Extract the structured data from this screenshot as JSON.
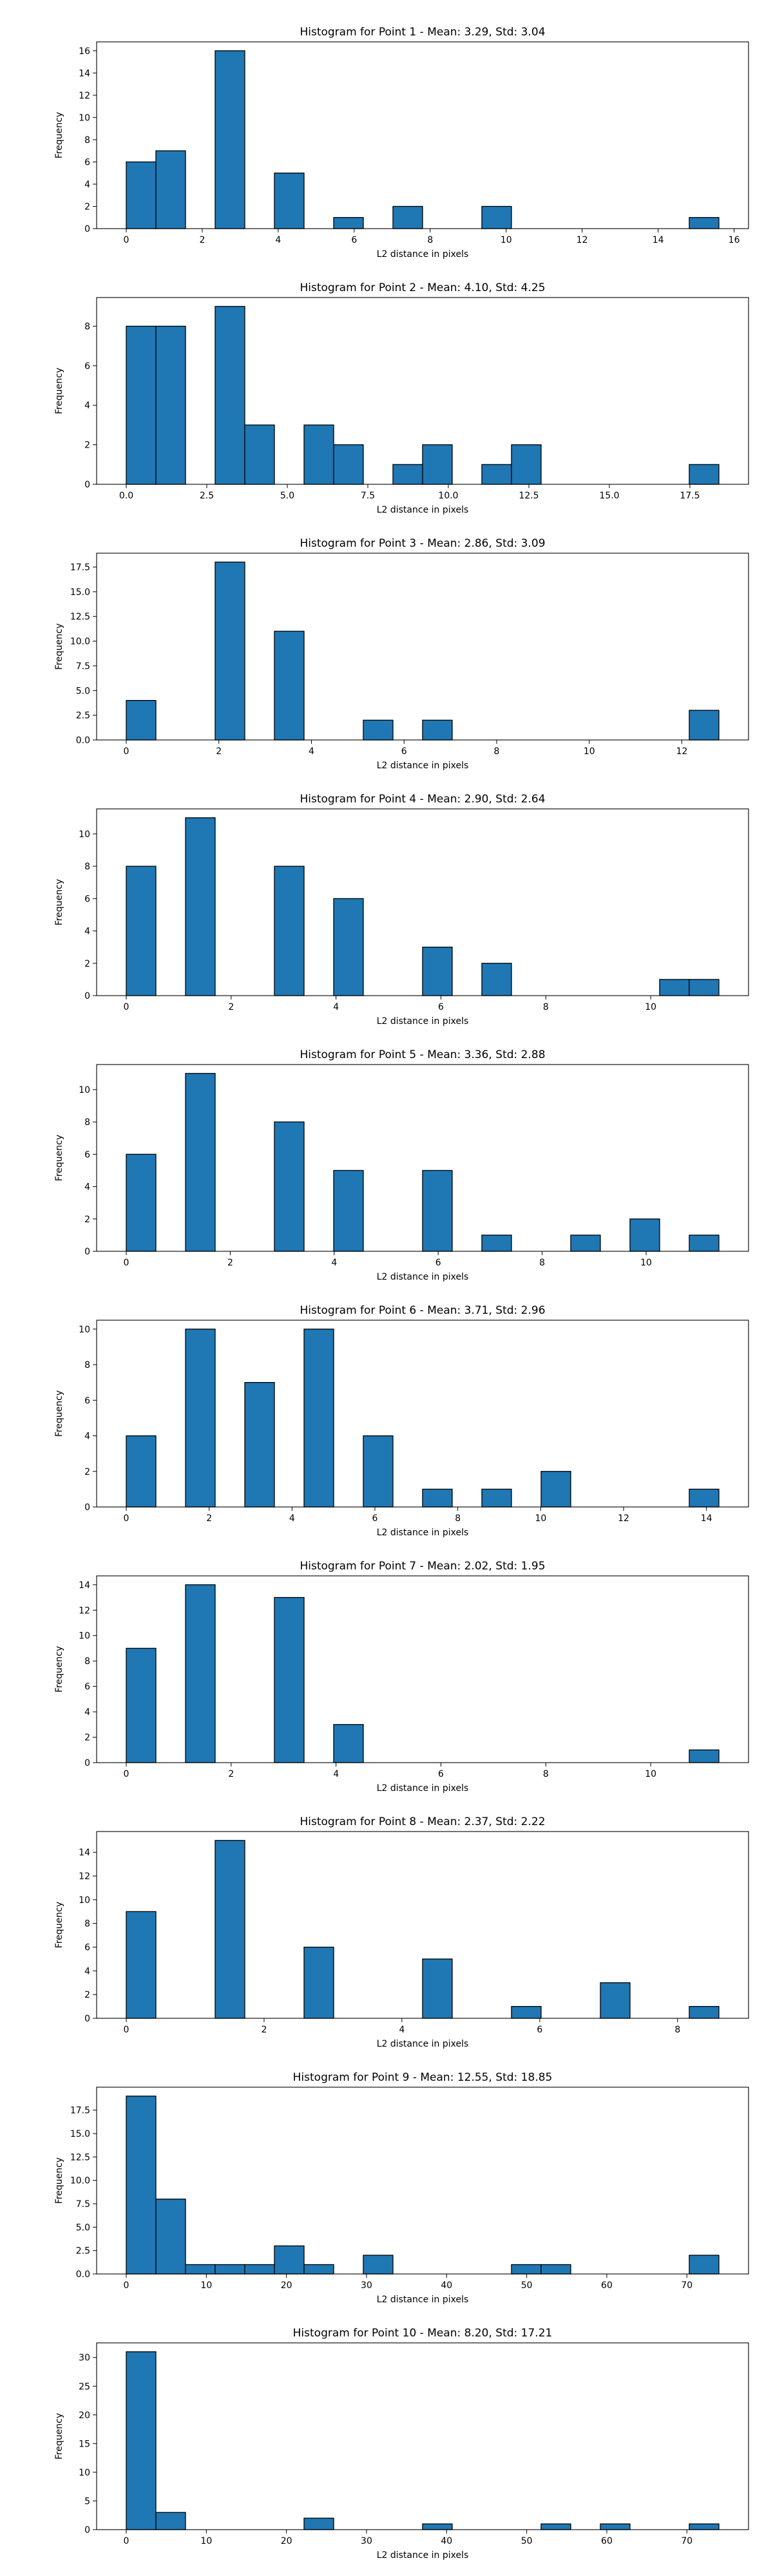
{
  "colors": {
    "bar_fill": "#1f77b4",
    "bar_edge": "#000000",
    "axis": "#000000",
    "background": "#ffffff"
  },
  "chart_data": [
    {
      "type": "bar",
      "title": "Histogram for Point 1 - Mean: 3.29, Std: 3.04",
      "xlabel": "L2 distance in pixels",
      "ylabel": "Frequency",
      "xlim": [
        -0.78,
        16.38
      ],
      "ylim": [
        0,
        16.8
      ],
      "xticks": [
        0,
        2,
        4,
        6,
        8,
        10,
        12,
        14,
        16
      ],
      "xtick_labels": [
        "0",
        "2",
        "4",
        "6",
        "8",
        "10",
        "12",
        "14",
        "16"
      ],
      "yticks": [
        0,
        2,
        4,
        6,
        8,
        10,
        12,
        14,
        16
      ],
      "ytick_labels": [
        "0",
        "2",
        "4",
        "6",
        "8",
        "10",
        "12",
        "14",
        "16"
      ],
      "bin_start": 0.0,
      "bin_width": 0.78,
      "counts": [
        6,
        7,
        0,
        16,
        0,
        5,
        0,
        1,
        0,
        2,
        0,
        0,
        2,
        0,
        0,
        0,
        0,
        0,
        0,
        1
      ],
      "grid": false,
      "legend": "none"
    },
    {
      "type": "bar",
      "title": "Histogram for Point 2 - Mean: 4.10, Std: 4.25",
      "xlabel": "L2 distance in pixels",
      "ylabel": "Frequency",
      "xlim": [
        -0.92,
        19.32
      ],
      "ylim": [
        0,
        9.45
      ],
      "xticks": [
        0,
        2.5,
        5,
        7.5,
        10,
        12.5,
        15,
        17.5
      ],
      "xtick_labels": [
        "0.0",
        "2.5",
        "5.0",
        "7.5",
        "10.0",
        "12.5",
        "15.0",
        "17.5"
      ],
      "yticks": [
        0,
        2,
        4,
        6,
        8
      ],
      "ytick_labels": [
        "0",
        "2",
        "4",
        "6",
        "8"
      ],
      "bin_start": 0.0,
      "bin_width": 0.92,
      "counts": [
        8,
        8,
        0,
        9,
        3,
        0,
        3,
        2,
        0,
        1,
        2,
        0,
        1,
        2,
        0,
        0,
        0,
        0,
        0,
        1
      ],
      "grid": false,
      "legend": "none"
    },
    {
      "type": "bar",
      "title": "Histogram for Point 3 - Mean: 2.86, Std: 3.09",
      "xlabel": "L2 distance in pixels",
      "ylabel": "Frequency",
      "xlim": [
        -0.64,
        13.44
      ],
      "ylim": [
        0,
        18.9
      ],
      "xticks": [
        0,
        2,
        4,
        6,
        8,
        10,
        12
      ],
      "xtick_labels": [
        "0",
        "2",
        "4",
        "6",
        "8",
        "10",
        "12"
      ],
      "yticks": [
        0,
        2.5,
        5,
        7.5,
        10,
        12.5,
        15,
        17.5
      ],
      "ytick_labels": [
        "0.0",
        "2.5",
        "5.0",
        "7.5",
        "10.0",
        "12.5",
        "15.0",
        "17.5"
      ],
      "bin_start": 0.0,
      "bin_width": 0.64,
      "counts": [
        4,
        0,
        0,
        18,
        0,
        11,
        0,
        0,
        2,
        0,
        2,
        0,
        0,
        0,
        0,
        0,
        0,
        0,
        0,
        3
      ],
      "grid": false,
      "legend": "none"
    },
    {
      "type": "bar",
      "title": "Histogram for Point 4 - Mean: 2.90, Std: 2.64",
      "xlabel": "L2 distance in pixels",
      "ylabel": "Frequency",
      "xlim": [
        -0.565,
        11.865
      ],
      "ylim": [
        0,
        11.55
      ],
      "xticks": [
        0,
        2,
        4,
        6,
        8,
        10
      ],
      "xtick_labels": [
        "0",
        "2",
        "4",
        "6",
        "8",
        "10"
      ],
      "yticks": [
        0,
        2,
        4,
        6,
        8,
        10
      ],
      "ytick_labels": [
        "0",
        "2",
        "4",
        "6",
        "8",
        "10"
      ],
      "bin_start": 0.0,
      "bin_width": 0.565,
      "counts": [
        8,
        0,
        11,
        0,
        0,
        8,
        0,
        6,
        0,
        0,
        3,
        0,
        2,
        0,
        0,
        0,
        0,
        0,
        1,
        1
      ],
      "grid": false,
      "legend": "none"
    },
    {
      "type": "bar",
      "title": "Histogram for Point 5 - Mean: 3.36, Std: 2.88",
      "xlabel": "L2 distance in pixels",
      "ylabel": "Frequency",
      "xlim": [
        -0.57,
        11.97
      ],
      "ylim": [
        0,
        11.55
      ],
      "xticks": [
        0,
        2,
        4,
        6,
        8,
        10
      ],
      "xtick_labels": [
        "0",
        "2",
        "4",
        "6",
        "8",
        "10"
      ],
      "yticks": [
        0,
        2,
        4,
        6,
        8,
        10
      ],
      "ytick_labels": [
        "0",
        "2",
        "4",
        "6",
        "8",
        "10"
      ],
      "bin_start": 0.0,
      "bin_width": 0.57,
      "counts": [
        6,
        0,
        11,
        0,
        0,
        8,
        0,
        5,
        0,
        0,
        5,
        0,
        1,
        0,
        0,
        1,
        0,
        2,
        0,
        1
      ],
      "grid": false,
      "legend": "none"
    },
    {
      "type": "bar",
      "title": "Histogram for Point 6 - Mean: 3.71, Std: 2.96",
      "xlabel": "L2 distance in pixels",
      "ylabel": "Frequency",
      "xlim": [
        -0.715,
        15.015
      ],
      "ylim": [
        0,
        10.5
      ],
      "xticks": [
        0,
        2,
        4,
        6,
        8,
        10,
        12,
        14
      ],
      "xtick_labels": [
        "0",
        "2",
        "4",
        "6",
        "8",
        "10",
        "12",
        "14"
      ],
      "yticks": [
        0,
        2,
        4,
        6,
        8,
        10
      ],
      "ytick_labels": [
        "0",
        "2",
        "4",
        "6",
        "8",
        "10"
      ],
      "bin_start": 0.0,
      "bin_width": 0.715,
      "counts": [
        4,
        0,
        10,
        0,
        7,
        0,
        10,
        0,
        4,
        0,
        1,
        0,
        1,
        0,
        2,
        0,
        0,
        0,
        0,
        1
      ],
      "grid": false,
      "legend": "none"
    },
    {
      "type": "bar",
      "title": "Histogram for Point 7 - Mean: 2.02, Std: 1.95",
      "xlabel": "L2 distance in pixels",
      "ylabel": "Frequency",
      "xlim": [
        -0.565,
        11.865
      ],
      "ylim": [
        0,
        14.7
      ],
      "xticks": [
        0,
        2,
        4,
        6,
        8,
        10
      ],
      "xtick_labels": [
        "0",
        "2",
        "4",
        "6",
        "8",
        "10"
      ],
      "yticks": [
        0,
        2,
        4,
        6,
        8,
        10,
        12,
        14
      ],
      "ytick_labels": [
        "0",
        "2",
        "4",
        "6",
        "8",
        "10",
        "12",
        "14"
      ],
      "bin_start": 0.0,
      "bin_width": 0.565,
      "counts": [
        9,
        0,
        14,
        0,
        0,
        13,
        0,
        3,
        0,
        0,
        0,
        0,
        0,
        0,
        0,
        0,
        0,
        0,
        0,
        1
      ],
      "grid": false,
      "legend": "none"
    },
    {
      "type": "bar",
      "title": "Histogram for Point 8 - Mean: 2.37, Std: 2.22",
      "xlabel": "L2 distance in pixels",
      "ylabel": "Frequency",
      "xlim": [
        -0.43,
        9.03
      ],
      "ylim": [
        0,
        15.75
      ],
      "xticks": [
        0,
        2,
        4,
        6,
        8
      ],
      "xtick_labels": [
        "0",
        "2",
        "4",
        "6",
        "8"
      ],
      "yticks": [
        0,
        2,
        4,
        6,
        8,
        10,
        12,
        14
      ],
      "ytick_labels": [
        "0",
        "2",
        "4",
        "6",
        "8",
        "10",
        "12",
        "14"
      ],
      "bin_start": 0.0,
      "bin_width": 0.43,
      "counts": [
        9,
        0,
        0,
        15,
        0,
        0,
        6,
        0,
        0,
        0,
        5,
        0,
        0,
        1,
        0,
        0,
        3,
        0,
        0,
        1
      ],
      "grid": false,
      "legend": "none"
    },
    {
      "type": "bar",
      "title": "Histogram for Point 9 - Mean: 12.55, Std: 18.85",
      "xlabel": "L2 distance in pixels",
      "ylabel": "Frequency",
      "xlim": [
        -3.7,
        77.7
      ],
      "ylim": [
        0,
        19.95
      ],
      "xticks": [
        0,
        10,
        20,
        30,
        40,
        50,
        60,
        70
      ],
      "xtick_labels": [
        "0",
        "10",
        "20",
        "30",
        "40",
        "50",
        "60",
        "70"
      ],
      "yticks": [
        0,
        2.5,
        5,
        7.5,
        10,
        12.5,
        15,
        17.5
      ],
      "ytick_labels": [
        "0.0",
        "2.5",
        "5.0",
        "7.5",
        "10.0",
        "12.5",
        "15.0",
        "17.5"
      ],
      "bin_start": 0.0,
      "bin_width": 3.7,
      "counts": [
        19,
        8,
        1,
        1,
        1,
        3,
        1,
        0,
        2,
        0,
        0,
        0,
        0,
        1,
        1,
        0,
        0,
        0,
        0,
        2
      ],
      "grid": false,
      "legend": "none"
    },
    {
      "type": "bar",
      "title": "Histogram for Point 10 - Mean: 8.20, Std: 17.21",
      "xlabel": "L2 distance in pixels",
      "ylabel": "Frequency",
      "xlim": [
        -3.7,
        77.7
      ],
      "ylim": [
        0,
        32.55
      ],
      "xticks": [
        0,
        10,
        20,
        30,
        40,
        50,
        60,
        70
      ],
      "xtick_labels": [
        "0",
        "10",
        "20",
        "30",
        "40",
        "50",
        "60",
        "70"
      ],
      "yticks": [
        0,
        5,
        10,
        15,
        20,
        25,
        30
      ],
      "ytick_labels": [
        "0",
        "5",
        "10",
        "15",
        "20",
        "25",
        "30"
      ],
      "bin_start": 0.0,
      "bin_width": 3.7,
      "counts": [
        31,
        3,
        0,
        0,
        0,
        0,
        2,
        0,
        0,
        0,
        1,
        0,
        0,
        0,
        1,
        0,
        1,
        0,
        0,
        1
      ],
      "grid": false,
      "legend": "none"
    }
  ]
}
